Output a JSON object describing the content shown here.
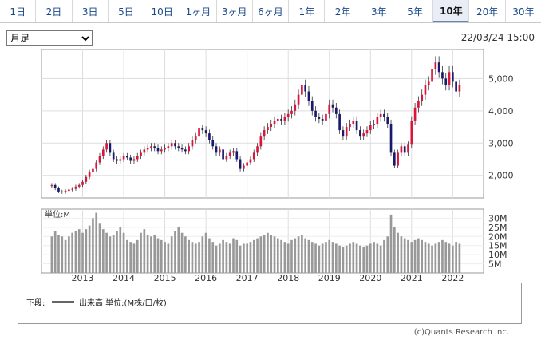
{
  "tabs": [
    "1日",
    "2日",
    "3日",
    "5日",
    "10日",
    "1ヶ月",
    "3ヶ月",
    "6ヶ月",
    "1年",
    "2年",
    "3年",
    "5年",
    "10年",
    "20年",
    "30年"
  ],
  "active_tab": "10年",
  "period_select": {
    "value": "月足",
    "options": [
      "月足"
    ]
  },
  "datetime": "22/03/24 15:00",
  "legend": {
    "label": "下段:",
    "series": "出来高 単位:(M株/口/枚)"
  },
  "copyright": "(c)Quants Research Inc.",
  "colors": {
    "up": "#dc143c",
    "down": "#191970",
    "volume": "#999999"
  },
  "chart_data": {
    "type": "candlestick",
    "x_tick_labels": [
      "2013",
      "2014",
      "2015",
      "2016",
      "2017",
      "2018",
      "2019",
      "2020",
      "2021",
      "2022"
    ],
    "x_tick_positions": [
      2013,
      2014,
      2015,
      2016,
      2017,
      2018,
      2019,
      2020,
      2021,
      2022
    ],
    "x_range": [
      2012.0,
      2022.75
    ],
    "price": {
      "ylim": [
        1300,
        5900
      ],
      "ticks": [
        2000,
        3000,
        4000,
        5000
      ],
      "tick_labels": [
        "2,000",
        "3,000",
        "4,000",
        "5,000"
      ],
      "grid": true
    },
    "volume": {
      "axis_label": "単位:M",
      "ylim": [
        0,
        35
      ],
      "ticks": [
        5,
        10,
        15,
        20,
        25,
        30
      ],
      "tick_labels": [
        "5M",
        "10M",
        "15M",
        "20M",
        "25M",
        "30M"
      ]
    },
    "monthly_close": [
      1700,
      1600,
      1500,
      1480,
      1520,
      1560,
      1580,
      1650,
      1700,
      1800,
      1950,
      2100,
      2200,
      2400,
      2600,
      2800,
      3000,
      2700,
      2500,
      2450,
      2500,
      2600,
      2550,
      2450,
      2500,
      2600,
      2700,
      2800,
      2850,
      2900,
      2850,
      2750,
      2800,
      2850,
      2900,
      3000,
      2900,
      2850,
      2800,
      2750,
      2900,
      3100,
      3200,
      3450,
      3400,
      3300,
      3100,
      2900,
      2700,
      2800,
      2500,
      2600,
      2700,
      2750,
      2500,
      2200,
      2300,
      2400,
      2500,
      2700,
      2900,
      3200,
      3400,
      3500,
      3600,
      3700,
      3750,
      3700,
      3800,
      3900,
      4000,
      4200,
      4500,
      4800,
      4600,
      4300,
      4000,
      3800,
      3750,
      3700,
      3900,
      4200,
      4100,
      3900,
      3400,
      3200,
      3500,
      3600,
      3700,
      3400,
      3200,
      3300,
      3400,
      3550,
      3600,
      3800,
      3900,
      3800,
      3600,
      2700,
      2300,
      2700,
      2900,
      2700,
      2950,
      3700,
      4100,
      4300,
      4500,
      4800,
      4900,
      5300,
      5500,
      5200,
      5000,
      4800,
      5200,
      4900,
      4600,
      4800
    ],
    "monthly_volume": [
      20,
      23,
      21,
      20,
      18,
      20,
      22,
      23,
      24,
      22,
      24,
      26,
      30,
      33,
      27,
      24,
      22,
      20,
      21,
      23,
      25,
      22,
      18,
      17,
      16,
      18,
      22,
      24,
      21,
      20,
      21,
      19,
      18,
      17,
      16,
      20,
      23,
      25,
      22,
      20,
      18,
      17,
      16,
      17,
      20,
      22,
      19,
      17,
      15,
      16,
      18,
      17,
      16,
      19,
      18,
      15,
      16,
      16,
      17,
      18,
      19,
      20,
      21,
      22,
      21,
      20,
      19,
      18,
      17,
      16,
      18,
      19,
      20,
      21,
      19,
      18,
      17,
      16,
      15,
      16,
      17,
      18,
      17,
      16,
      15,
      14,
      15,
      16,
      17,
      16,
      15,
      14,
      15,
      16,
      17,
      16,
      15,
      18,
      20,
      32,
      25,
      22,
      20,
      19,
      18,
      17,
      18,
      19,
      18,
      17,
      16,
      15,
      16,
      17,
      18,
      17,
      16,
      15,
      17,
      16
    ],
    "start": 2012.25,
    "step_years": 0.08333
  }
}
